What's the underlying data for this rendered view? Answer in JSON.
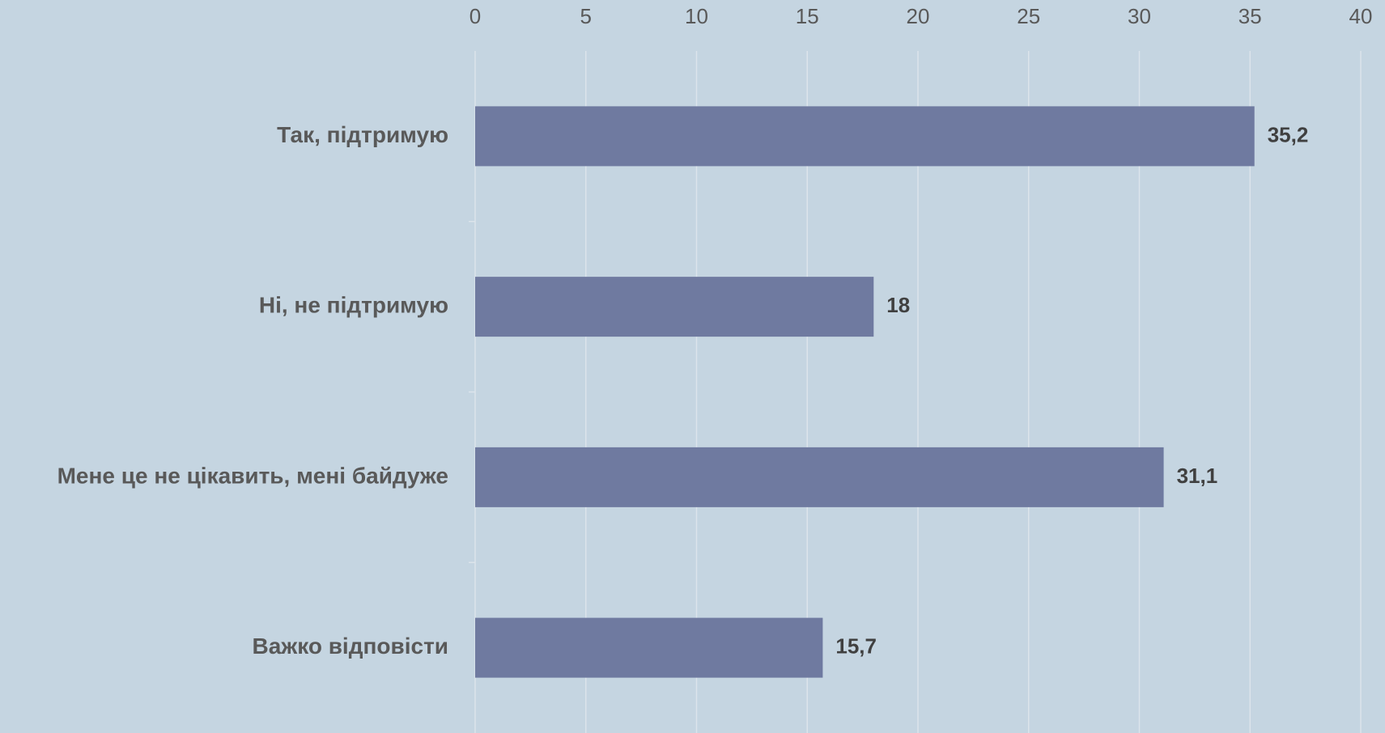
{
  "chart_data": {
    "type": "bar",
    "orientation": "horizontal",
    "categories": [
      "Так, підтримую",
      "Ні, не підтримую",
      "Мене це не цікавить, мені байдуже",
      "Важко відповісти"
    ],
    "values": [
      35.2,
      18,
      31.1,
      15.7
    ],
    "value_labels": [
      "35,2",
      "18",
      "31,1",
      "15,7"
    ],
    "color": "#6f7aa0",
    "xlim": [
      0,
      40
    ],
    "xticks": [
      0,
      5,
      10,
      15,
      20,
      25,
      30,
      35,
      40
    ],
    "grid": true
  }
}
